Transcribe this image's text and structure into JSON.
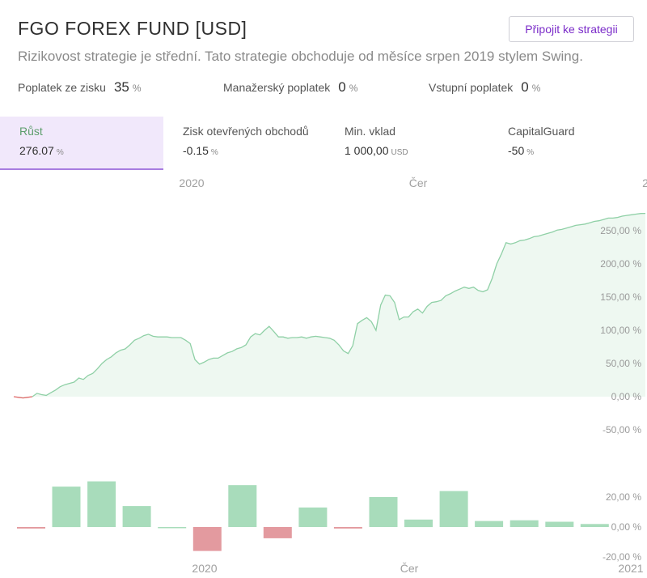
{
  "header": {
    "title": "FGO FOREX FUND [USD]",
    "connect_button": "Připojit ke strategii",
    "subtitle": "Rizikovost strategie je střední. Tato strategie obchoduje od měsíce srpen 2019 stylem Swing."
  },
  "fees": [
    {
      "label": "Poplatek ze zisku",
      "value": "35",
      "unit": "%"
    },
    {
      "label": "Manažerský poplatek",
      "value": "0",
      "unit": "%"
    },
    {
      "label": "Vstupní poplatek",
      "value": "0",
      "unit": "%"
    }
  ],
  "stats": [
    {
      "label": "Růst",
      "value": "276.07",
      "unit": "%"
    },
    {
      "label": "Zisk otevřených obchodů",
      "value": "-0.15",
      "unit": "%"
    },
    {
      "label": "Min. vklad",
      "value": "1 000,00",
      "unit": "USD"
    },
    {
      "label": "CapitalGuard",
      "value": "-50",
      "unit": "%"
    }
  ],
  "colors": {
    "line": "#8fd0a6",
    "area": "#eef8f1",
    "negative_line": "#e06b6b",
    "bar_positive": "#a8dcbb",
    "bar_negative": "#e39a9f",
    "accent": "#7b2cc9"
  },
  "chart_data": [
    {
      "type": "area",
      "title": "",
      "x_ticks_top": [
        "2020",
        "Čer",
        "2"
      ],
      "y_ticks": [
        "250,00 %",
        "200,00 %",
        "150,00 %",
        "100,00 %",
        "50,00 %",
        "0,00 %",
        "-50,00 %"
      ],
      "ylim": [
        -50,
        280
      ],
      "series": [
        {
          "values": [
            0,
            -1,
            -2,
            -1,
            0,
            5,
            3,
            2,
            6,
            10,
            15,
            18,
            20,
            22,
            28,
            26,
            32,
            35,
            42,
            50,
            56,
            60,
            66,
            70,
            72,
            78,
            85,
            88,
            92,
            94,
            91,
            90,
            90,
            90,
            89,
            89,
            89,
            85,
            80,
            56,
            49,
            52,
            56,
            58,
            58,
            62,
            66,
            68,
            72,
            74,
            78,
            90,
            95,
            93,
            100,
            106,
            98,
            90,
            90,
            88,
            89,
            89,
            90,
            88,
            90,
            91,
            90,
            89,
            88,
            85,
            78,
            69,
            65,
            77,
            110,
            115,
            119,
            113,
            100,
            138,
            153,
            152,
            142,
            116,
            120,
            120,
            128,
            132,
            126,
            136,
            142,
            143,
            145,
            152,
            155,
            159,
            162,
            165,
            163,
            165,
            160,
            158,
            161,
            178,
            200,
            215,
            232,
            230,
            232,
            235,
            236,
            238,
            241,
            242,
            244,
            246,
            248,
            251,
            252,
            254,
            256,
            258,
            259,
            260,
            262,
            264,
            265,
            267,
            269,
            269,
            270,
            272,
            273,
            274,
            275,
            276,
            276.07
          ]
        }
      ]
    },
    {
      "type": "bar",
      "title": "",
      "x_ticks": [
        "2020",
        "Čer",
        "2021"
      ],
      "y_ticks": [
        "20,00 %",
        "0,00 %",
        "-20,00 %"
      ],
      "ylim": [
        -20,
        30
      ],
      "values": [
        -1.0,
        27.0,
        30.5,
        14.0,
        0,
        -16.0,
        28.0,
        -7.5,
        13.0,
        -1.0,
        20.0,
        5.0,
        24.0,
        4.0,
        4.5,
        3.5,
        2.0
      ]
    }
  ]
}
